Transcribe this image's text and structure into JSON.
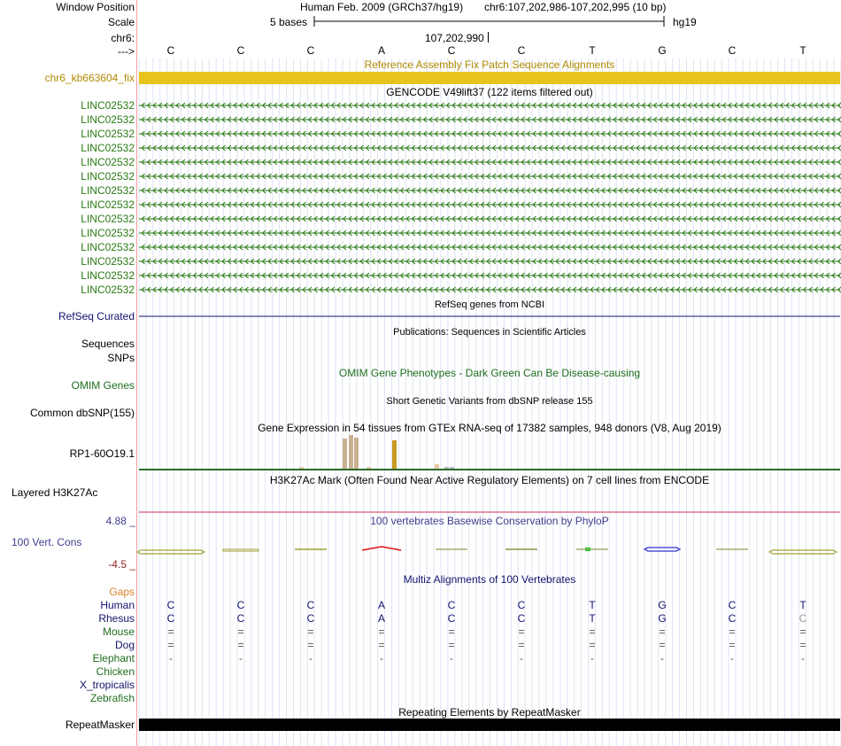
{
  "ruler": {
    "window_label": "Window Position",
    "assembly": "Human Feb. 2009 (GRCh37/hg19)",
    "position": "chr6:107,202,986-107,202,995 (10 bp)",
    "scale_label": "Scale",
    "scale_text": "5 bases",
    "db": "hg19",
    "chrom_label": "chr6:",
    "coord": "107,202,990",
    "strand_label": "--->",
    "bases": [
      "C",
      "C",
      "C",
      "A",
      "C",
      "C",
      "T",
      "G",
      "C",
      "T"
    ]
  },
  "fix_patch": {
    "title": "Reference Assembly Fix Patch Sequence Alignments",
    "label": "chr6_kb663604_fix",
    "color": "#e6c41c",
    "label_color": "#b08a00"
  },
  "gencode": {
    "title": "GENCODE V49lift37 (122 items filtered out)",
    "color": "#2a7a14",
    "items": [
      "LINC02532",
      "LINC02532",
      "LINC02532",
      "LINC02532",
      "LINC02532",
      "LINC02532",
      "LINC02532",
      "LINC02532",
      "LINC02532",
      "LINC02532",
      "LINC02532",
      "LINC02532",
      "LINC02532",
      "LINC02532"
    ]
  },
  "refseq": {
    "title": "RefSeq genes from NCBI",
    "label": "RefSeq Curated",
    "color": "#12126e"
  },
  "publications": {
    "title": "Publications: Sequences in Scientific Articles",
    "label": "Sequences"
  },
  "snps": {
    "label": "SNPs"
  },
  "omim": {
    "title": "OMIM Gene Phenotypes - Dark Green Can Be Disease-causing",
    "label": "OMIM Genes",
    "color": "#1e6e1e"
  },
  "dbsnp": {
    "title": "Short Genetic Variants from dbSNP release 155",
    "label": "Common dbSNP(155)"
  },
  "gtex": {
    "title": "Gene Expression in 54 tissues from GTEx RNA-seq of 17382 samples, 948 donors (V8, Aug 2019)",
    "label": "RP1-60O19.1"
  },
  "h3k27ac": {
    "title": "H3K27Ac Mark (Often Found Near Active Regulatory Elements) on 7 cell lines from ENCODE",
    "label": "Layered H3K27Ac"
  },
  "phylop": {
    "title": "100 vertebrates Basewise Conservation by PhyloP",
    "label": "100 Vert. Cons",
    "max": "4.88 _",
    "min": "-4.5 _",
    "label_color": "#3e3e8e",
    "min_color": "#8e1e1e"
  },
  "multiz": {
    "title": "Multiz Alignments of 100 Vertebrates",
    "gaps_label": "Gaps",
    "gaps_color": "#d9822b",
    "species": [
      {
        "name": "Human",
        "color": "#12126e",
        "row": [
          "C",
          "C",
          "C",
          "A",
          "C",
          "C",
          "T",
          "G",
          "C",
          "T"
        ]
      },
      {
        "name": "Rhesus",
        "color": "#12126e",
        "row": [
          "C",
          "C",
          "C",
          "A",
          "C",
          "C",
          "T",
          "G",
          "C",
          "C"
        ]
      },
      {
        "name": "Mouse",
        "color": "#1e6e1e",
        "row": [
          "=",
          "=",
          "=",
          "=",
          "=",
          "=",
          "=",
          "=",
          "=",
          "="
        ]
      },
      {
        "name": "Dog",
        "color": "#12126e",
        "row": [
          "=",
          "=",
          "=",
          "=",
          "=",
          "=",
          "=",
          "=",
          "=",
          "="
        ]
      },
      {
        "name": "Elephant",
        "color": "#1e6e1e",
        "row": [
          "-",
          "-",
          "-",
          "-",
          "-",
          "-",
          "-",
          "-",
          "-",
          "-"
        ]
      },
      {
        "name": "Chicken",
        "color": "#1e6e1e",
        "row": []
      },
      {
        "name": "X_tropicalis",
        "color": "#12126e",
        "row": []
      },
      {
        "name": "Zebrafish",
        "color": "#1e6e1e",
        "row": []
      }
    ]
  },
  "repeatmasker": {
    "title": "Repeating Elements by RepeatMasker",
    "label": "RepeatMasker"
  }
}
